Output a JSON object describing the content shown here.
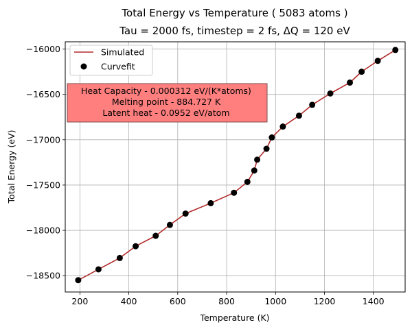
{
  "chart_data": {
    "type": "line",
    "title": "Total Energy vs Temperature ( 5083 atoms )",
    "subtitle": "Tau = 2000 fs, timestep = 2 fs, ΔQ = 120 eV",
    "xlabel": "Temperature (K)",
    "ylabel": "Total Energy (eV)",
    "xlim": [
      140,
      1530
    ],
    "ylim": [
      -18680,
      -15920
    ],
    "xticks": [
      200,
      400,
      600,
      800,
      1000,
      1200,
      1400
    ],
    "yticks": [
      -18500,
      -18000,
      -17500,
      -17000,
      -16500,
      -16000
    ],
    "xtick_labels": [
      "200",
      "400",
      "600",
      "800",
      "1000",
      "1200",
      "1400"
    ],
    "ytick_labels": [
      "−18500",
      "−18000",
      "−17500",
      "−17000",
      "−16500",
      "−16000"
    ],
    "grid": true,
    "legend_position": "top-left",
    "colors": {
      "line": "#b22a2a",
      "marker": "#000000",
      "grid": "#b0b0b0",
      "annotation_fill": "#ff7f7f",
      "annotation_edge": "#7a4a4a"
    },
    "series": [
      {
        "name": "Simulated",
        "kind": "line",
        "x": [
          193,
          276,
          363,
          428,
          510,
          568,
          632,
          735,
          830,
          885,
          913,
          925,
          963,
          985,
          1030,
          1096,
          1150,
          1224,
          1304,
          1352,
          1418,
          1490
        ],
        "y": [
          -18550,
          -18430,
          -18305,
          -18175,
          -18060,
          -17940,
          -17815,
          -17700,
          -17585,
          -17465,
          -17340,
          -17220,
          -17100,
          -16975,
          -16855,
          -16735,
          -16615,
          -16490,
          -16370,
          -16250,
          -16130,
          -16010
        ]
      },
      {
        "name": "Curvefit",
        "kind": "scatter",
        "x": [
          193,
          276,
          363,
          428,
          510,
          568,
          632,
          735,
          830,
          885,
          913,
          925,
          963,
          985,
          1030,
          1096,
          1150,
          1224,
          1304,
          1352,
          1418,
          1490
        ],
        "y": [
          -18550,
          -18430,
          -18305,
          -18175,
          -18060,
          -17940,
          -17815,
          -17700,
          -17585,
          -17465,
          -17340,
          -17220,
          -17100,
          -16975,
          -16855,
          -16735,
          -16615,
          -16490,
          -16370,
          -16250,
          -16130,
          -16010
        ]
      }
    ],
    "annotation": {
      "lines": [
        "Heat Capacity - 0.000312 eV/(K*atoms)",
        "Melting point - 884.727 K",
        "Latent heat - 0.0952 eV/atom"
      ]
    }
  }
}
